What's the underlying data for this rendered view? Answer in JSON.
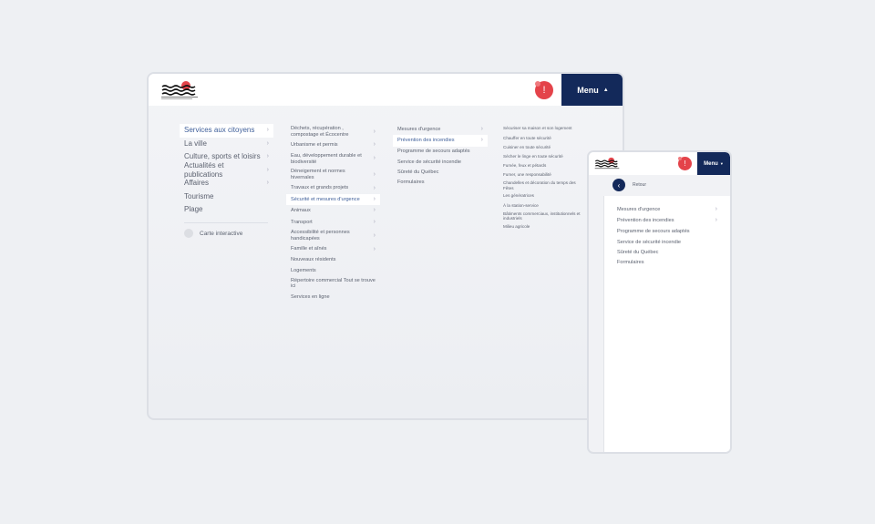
{
  "colors": {
    "accent": "#13295a",
    "alert": "#e4434a",
    "selected_text": "#3f5f9a"
  },
  "header": {
    "menu_label": "Menu",
    "menu_icon": "chevron-up-icon",
    "alert_icon": "exclamation-icon",
    "alert_text": "!"
  },
  "level1": [
    {
      "label": "Services aux citoyens",
      "chevron": true,
      "selected": true
    },
    {
      "label": "La ville",
      "chevron": true
    },
    {
      "label": "Culture, sports et loisirs",
      "chevron": true
    },
    {
      "label": "Actualités et publications",
      "chevron": true
    },
    {
      "label": "Affaires",
      "chevron": true
    },
    {
      "label": "Tourisme",
      "chevron": false
    },
    {
      "label": "Plage",
      "chevron": false
    }
  ],
  "map_link": {
    "label": "Carte interactive",
    "icon": "map-pin-icon"
  },
  "level2": [
    {
      "label": "Déchets, récupération , compostage et Écocentre",
      "chevron": true
    },
    {
      "label": "Urbanisme et permis",
      "chevron": true
    },
    {
      "label": "Eau, développement durable et biodiversité",
      "chevron": true
    },
    {
      "label": "Déneigement et normes hivernales",
      "chevron": true
    },
    {
      "label": "Travaux et grands projets",
      "chevron": true
    },
    {
      "label": "Sécurité et mesures d'urgence",
      "chevron": true,
      "selected": true
    },
    {
      "label": "Animaux",
      "chevron": true
    },
    {
      "label": "Transport",
      "chevron": true
    },
    {
      "label": "Accessibilité et personnes handicapées",
      "chevron": true
    },
    {
      "label": "Famille et aînés",
      "chevron": true
    },
    {
      "label": "Nouveaux résidents",
      "chevron": false
    },
    {
      "label": "Logements",
      "chevron": false
    },
    {
      "label": "Répertoire commercial Tout se trouve ici",
      "chevron": false
    },
    {
      "label": "Services en ligne",
      "chevron": false
    }
  ],
  "level3": [
    {
      "label": "Mesures d'urgence",
      "chevron": true
    },
    {
      "label": "Prévention des incendies",
      "chevron": true,
      "selected": true
    },
    {
      "label": "Programme de secours adaptés",
      "chevron": false
    },
    {
      "label": "Service de sécurité incendie",
      "chevron": false
    },
    {
      "label": "Sûreté du Québec",
      "chevron": false
    },
    {
      "label": "Formulaires",
      "chevron": false
    }
  ],
  "level4": [
    {
      "label": "Sécuriser sa maison et son logement"
    },
    {
      "label": "Chauffer en toute sécurité"
    },
    {
      "label": "Cuisiner en toute sécurité"
    },
    {
      "label": "Sécher le linge en toute sécurité"
    },
    {
      "label": "Fumée, feux et pétards"
    },
    {
      "label": "Fumer, une responsabilité"
    },
    {
      "label": "Chandelles et décoration du temps des Fêtes"
    },
    {
      "label": "Les génératrices"
    },
    {
      "label": "À la station-service"
    },
    {
      "label": "Bâtiments commerciaux, institutionnels et industriels"
    },
    {
      "label": "Milieu agricole"
    }
  ],
  "mobile": {
    "back_label": "Retour",
    "back_icon": "chevron-left-icon",
    "menu_label": "Menu",
    "items": [
      {
        "label": "Mesures d'urgence",
        "chevron": true
      },
      {
        "label": "Prévention des incendies",
        "chevron": true
      },
      {
        "label": "Programme de secours adaptés",
        "chevron": false
      },
      {
        "label": "Service de sécurité incendie",
        "chevron": false
      },
      {
        "label": "Sûreté du Québec",
        "chevron": false
      },
      {
        "label": "Formulaires",
        "chevron": false
      }
    ]
  }
}
